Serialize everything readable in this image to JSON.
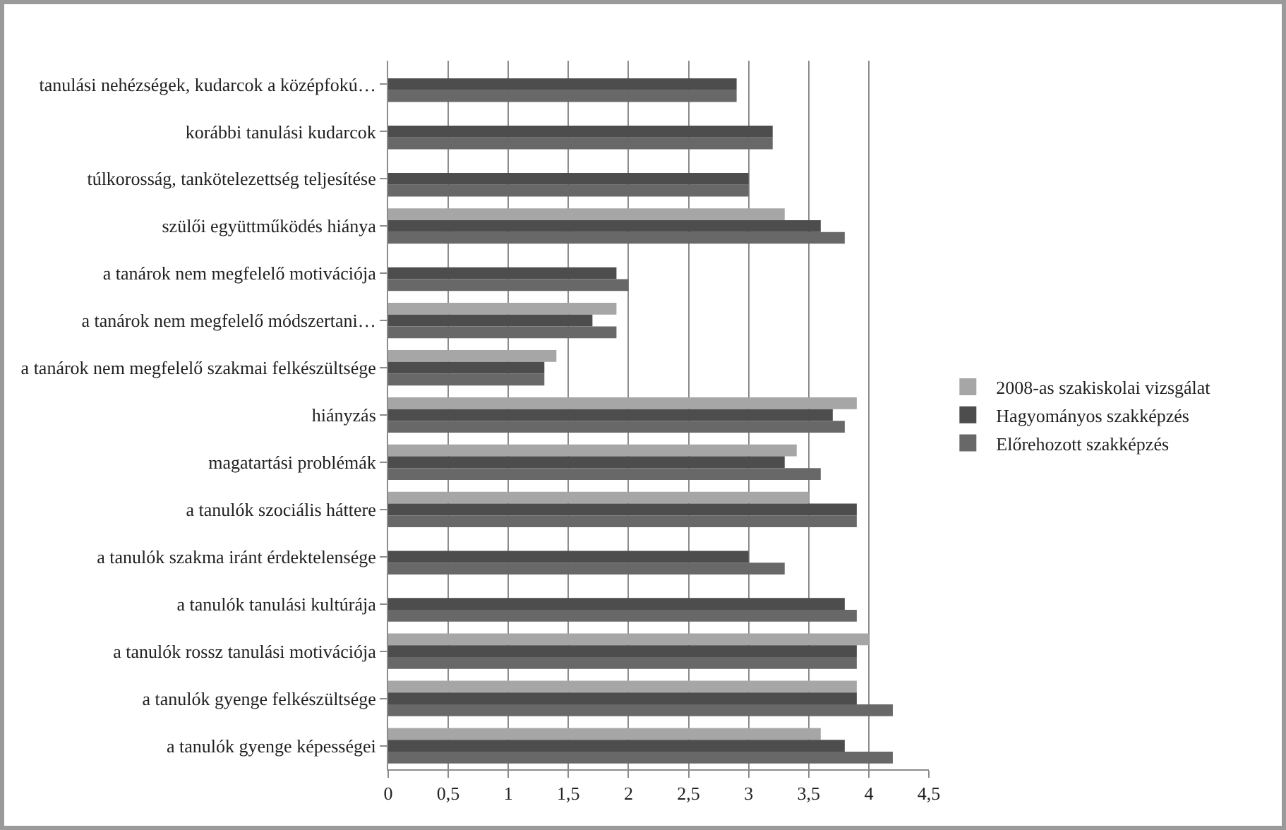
{
  "chart_data": {
    "type": "bar",
    "orientation": "horizontal",
    "categories": [
      "tanulási nehézségek, kudarcok a középfokú…",
      "korábbi tanulási kudarcok",
      "túlkorosság, tankötelezettség teljesítése",
      "szülői együttműködés hiánya",
      "a tanárok nem megfelelő motivációja",
      "a tanárok nem megfelelő módszertani…",
      "a tanárok nem megfelelő szakmai felkészültsége",
      "hiányzás",
      "magatartási problémák",
      "a tanulók szociális háttere",
      "a tanulók szakma iránt érdektelensége",
      "a tanulók tanulási kultúrája",
      "a tanulók rossz tanulási motivációja",
      "a tanulók gyenge felkészültsége",
      "a tanulók gyenge képességei"
    ],
    "series": [
      {
        "name": "2008-as szakiskolai vizsgálat",
        "color": "#a6a6a6",
        "values": [
          null,
          null,
          null,
          3.3,
          null,
          1.9,
          1.4,
          3.9,
          3.4,
          3.5,
          null,
          null,
          4.0,
          3.9,
          3.6
        ]
      },
      {
        "name": "Hagyományos szakképzés",
        "color": "#4d4d4d",
        "values": [
          2.9,
          3.2,
          3.0,
          3.6,
          1.9,
          1.7,
          1.3,
          3.7,
          3.3,
          3.9,
          3.0,
          3.8,
          3.9,
          3.9,
          3.8
        ]
      },
      {
        "name": "Előrehozott szakképzés",
        "color": "#686868",
        "values": [
          2.9,
          3.2,
          3.0,
          3.8,
          2.0,
          1.9,
          1.3,
          3.8,
          3.6,
          3.9,
          3.3,
          3.9,
          3.9,
          4.2,
          4.2
        ]
      }
    ],
    "xlim": [
      0,
      4.5
    ],
    "xticks": [
      0,
      {
        "value": 0.5,
        "label": "0,5"
      },
      1,
      {
        "value": 1.5,
        "label": "1,5"
      },
      2,
      {
        "value": 2.5,
        "label": "2,5"
      },
      3,
      {
        "value": 3.5,
        "label": "3,5"
      },
      4,
      {
        "value": 4.5,
        "label": "4,5"
      }
    ],
    "grid": "x",
    "legend": "right"
  }
}
